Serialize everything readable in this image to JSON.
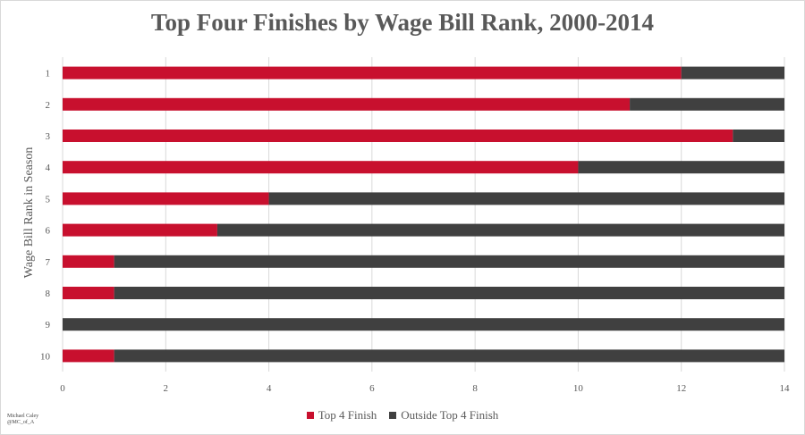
{
  "chart_data": {
    "type": "bar",
    "orientation": "horizontal",
    "stacked": true,
    "title": "Top Four Finishes by Wage Bill Rank, 2000-2014",
    "ylabel": "Wage Bill Rank in Season",
    "xlabel": "",
    "categories": [
      "1",
      "2",
      "3",
      "4",
      "5",
      "6",
      "7",
      "8",
      "9",
      "10"
    ],
    "series": [
      {
        "name": "Top 4 Finish",
        "color": "#c8102e",
        "values": [
          12,
          11,
          13,
          10,
          4,
          3,
          1,
          1,
          0,
          1
        ]
      },
      {
        "name": "Outside Top 4 Finish",
        "color": "#404040",
        "values": [
          2,
          3,
          1,
          4,
          10,
          11,
          13,
          13,
          14,
          13
        ]
      }
    ],
    "xlim": [
      0,
      14
    ],
    "xticks": [
      "0",
      "2",
      "4",
      "6",
      "8",
      "10",
      "12",
      "14"
    ],
    "grid": true,
    "legend_position": "bottom"
  },
  "credit": {
    "line1": "Michael Caley",
    "line2": "@MC_of_A"
  }
}
